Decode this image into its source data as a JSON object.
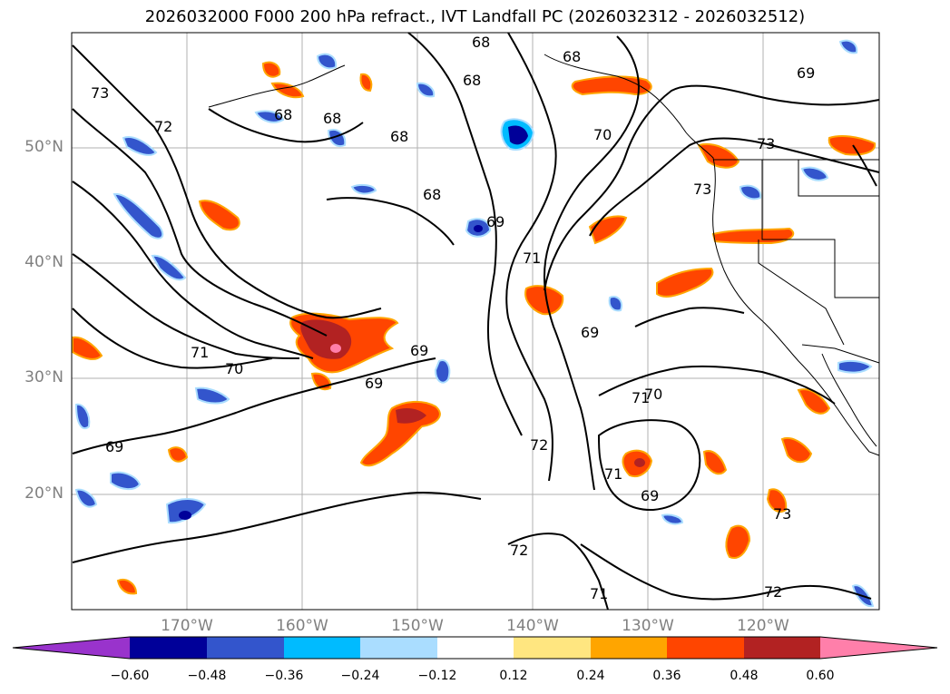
{
  "title": "2026032000 F000 200 hPa refract., IVT Landfall PC (2026032312 - 2026032512)",
  "map": {
    "lat_labels": [
      "50°N",
      "40°N",
      "30°N",
      "20°N"
    ],
    "lon_labels": [
      "170°W",
      "160°W",
      "150°W",
      "140°W",
      "130°W",
      "120°W"
    ],
    "contour_labels": [
      "68",
      "68",
      "68",
      "68",
      "68",
      "68",
      "68",
      "69",
      "69",
      "69",
      "69",
      "69",
      "69",
      "69",
      "70",
      "70",
      "70",
      "71",
      "71",
      "71",
      "71",
      "71",
      "72",
      "72",
      "72",
      "72",
      "73",
      "73",
      "73",
      "73"
    ],
    "colors": {
      "contour": "#000000",
      "grid": "#b0b0b0",
      "coast": "#000000"
    }
  },
  "colorbar": {
    "ticks": [
      "−0.60",
      "−0.48",
      "−0.36",
      "−0.24",
      "−0.12",
      "0.12",
      "0.24",
      "0.36",
      "0.48",
      "0.60"
    ],
    "colors": [
      "#9933cc",
      "#000099",
      "#3355cc",
      "#00bbff",
      "#aaddff",
      "#ffffff",
      "#ffe680",
      "#ffa500",
      "#ff4500",
      "#b22222",
      "#ff7faa"
    ]
  }
}
